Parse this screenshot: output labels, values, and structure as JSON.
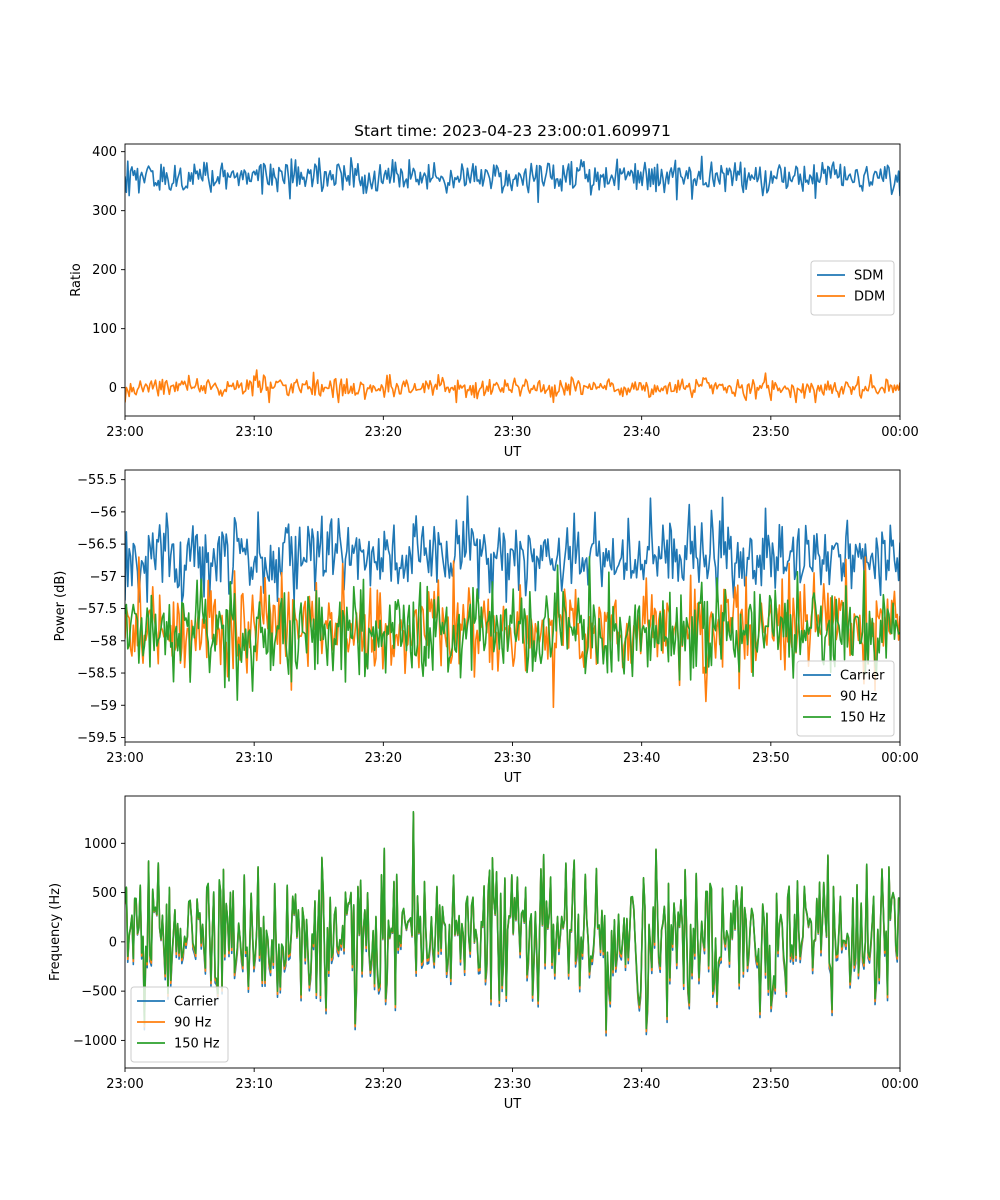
{
  "figure": {
    "title": "Start time: 2023-04-23 23:00:01.609971"
  },
  "colors": {
    "blue": "#1f77b4",
    "orange": "#ff7f0e",
    "green": "#2ca02c"
  },
  "chart_data": [
    {
      "type": "line",
      "title": "Start time: 2023-04-23 23:00:01.609971",
      "xlabel": "UT",
      "ylabel": "Ratio",
      "x_range": [
        "23:00",
        "00:00"
      ],
      "xlim_minutes": [
        0,
        60
      ],
      "x_ticks": [
        "23:00",
        "23:10",
        "23:20",
        "23:30",
        "23:40",
        "23:50",
        "00:00"
      ],
      "ylim": [
        -48,
        413
      ],
      "y_ticks": [
        0,
        100,
        200,
        300,
        400
      ],
      "grid": false,
      "legend": "center-right",
      "series": [
        {
          "name": "SDM",
          "color": "#1f77b4",
          "mean": 358,
          "noise": 14,
          "min": 305,
          "max": 392
        },
        {
          "name": "DDM",
          "color": "#ff7f0e",
          "mean": 0,
          "noise": 9,
          "min": -25,
          "max": 32
        }
      ]
    },
    {
      "type": "line",
      "xlabel": "UT",
      "ylabel": "Power (dB)",
      "x_range": [
        "23:00",
        "00:00"
      ],
      "xlim_minutes": [
        0,
        60
      ],
      "x_ticks": [
        "23:00",
        "23:10",
        "23:20",
        "23:30",
        "23:40",
        "23:50",
        "00:00"
      ],
      "ylim": [
        -59.57,
        -55.35
      ],
      "y_ticks": [
        -55.5,
        -56.0,
        -56.5,
        -57.0,
        -57.5,
        -58.0,
        -58.5,
        -59.0,
        -59.5
      ],
      "grid": false,
      "legend": "lower-right",
      "series": [
        {
          "name": "Carrier",
          "color": "#1f77b4",
          "mean": -56.7,
          "noise": 0.3,
          "min": -57.4,
          "max": -55.45
        },
        {
          "name": "90 Hz",
          "color": "#ff7f0e",
          "mean": -57.8,
          "noise": 0.35,
          "min": -59.38,
          "max": -56.7
        },
        {
          "name": "150 Hz",
          "color": "#2ca02c",
          "mean": -57.85,
          "noise": 0.35,
          "min": -59.1,
          "max": -56.65
        }
      ]
    },
    {
      "type": "line",
      "xlabel": "UT",
      "ylabel": "Frequency (Hz)",
      "x_range": [
        "23:00",
        "00:00"
      ],
      "xlim_minutes": [
        0,
        60
      ],
      "x_ticks": [
        "23:00",
        "23:10",
        "23:20",
        "23:30",
        "23:40",
        "23:50",
        "00:00"
      ],
      "ylim": [
        -1280,
        1480
      ],
      "y_ticks": [
        1000,
        500,
        0,
        -500,
        -1000
      ],
      "grid": false,
      "legend": "lower-left",
      "series": [
        {
          "name": "Carrier",
          "color": "#1f77b4",
          "offset": -60
        },
        {
          "name": "90 Hz",
          "color": "#ff7f0e",
          "offset": -30
        },
        {
          "name": "150 Hz",
          "color": "#2ca02c",
          "offset": 0
        }
      ],
      "shared_signal": {
        "mean": 100,
        "noise": 350,
        "min": -1150,
        "max": 1360
      }
    }
  ]
}
